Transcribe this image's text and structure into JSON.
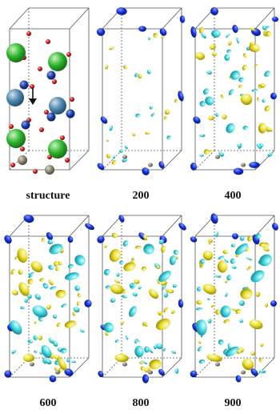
{
  "panels": [
    {
      "id": "structure",
      "label": "structure",
      "kind": "atoms"
    },
    {
      "id": "p200",
      "label": "200",
      "kind": "density",
      "level": 1
    },
    {
      "id": "p400",
      "label": "400",
      "kind": "density",
      "level": 2
    },
    {
      "id": "p600",
      "label": "600",
      "kind": "density",
      "level": 3
    },
    {
      "id": "p800",
      "label": "800",
      "kind": "density",
      "level": 3
    },
    {
      "id": "p900",
      "label": "900",
      "kind": "density",
      "level": 3
    }
  ],
  "colors": {
    "box_edge": "#555555",
    "large_atom": "#2fb52f",
    "medium_atom": "#4f86ad",
    "small_blue_atom": "#1b3fa8",
    "red_atom": "#d01818",
    "grey_atom": "#8a8472",
    "iso_positive": "#e8dd2a",
    "iso_negative": "#3fd6e0",
    "iso_blue": "#1330d8",
    "arrow": "#111111"
  }
}
